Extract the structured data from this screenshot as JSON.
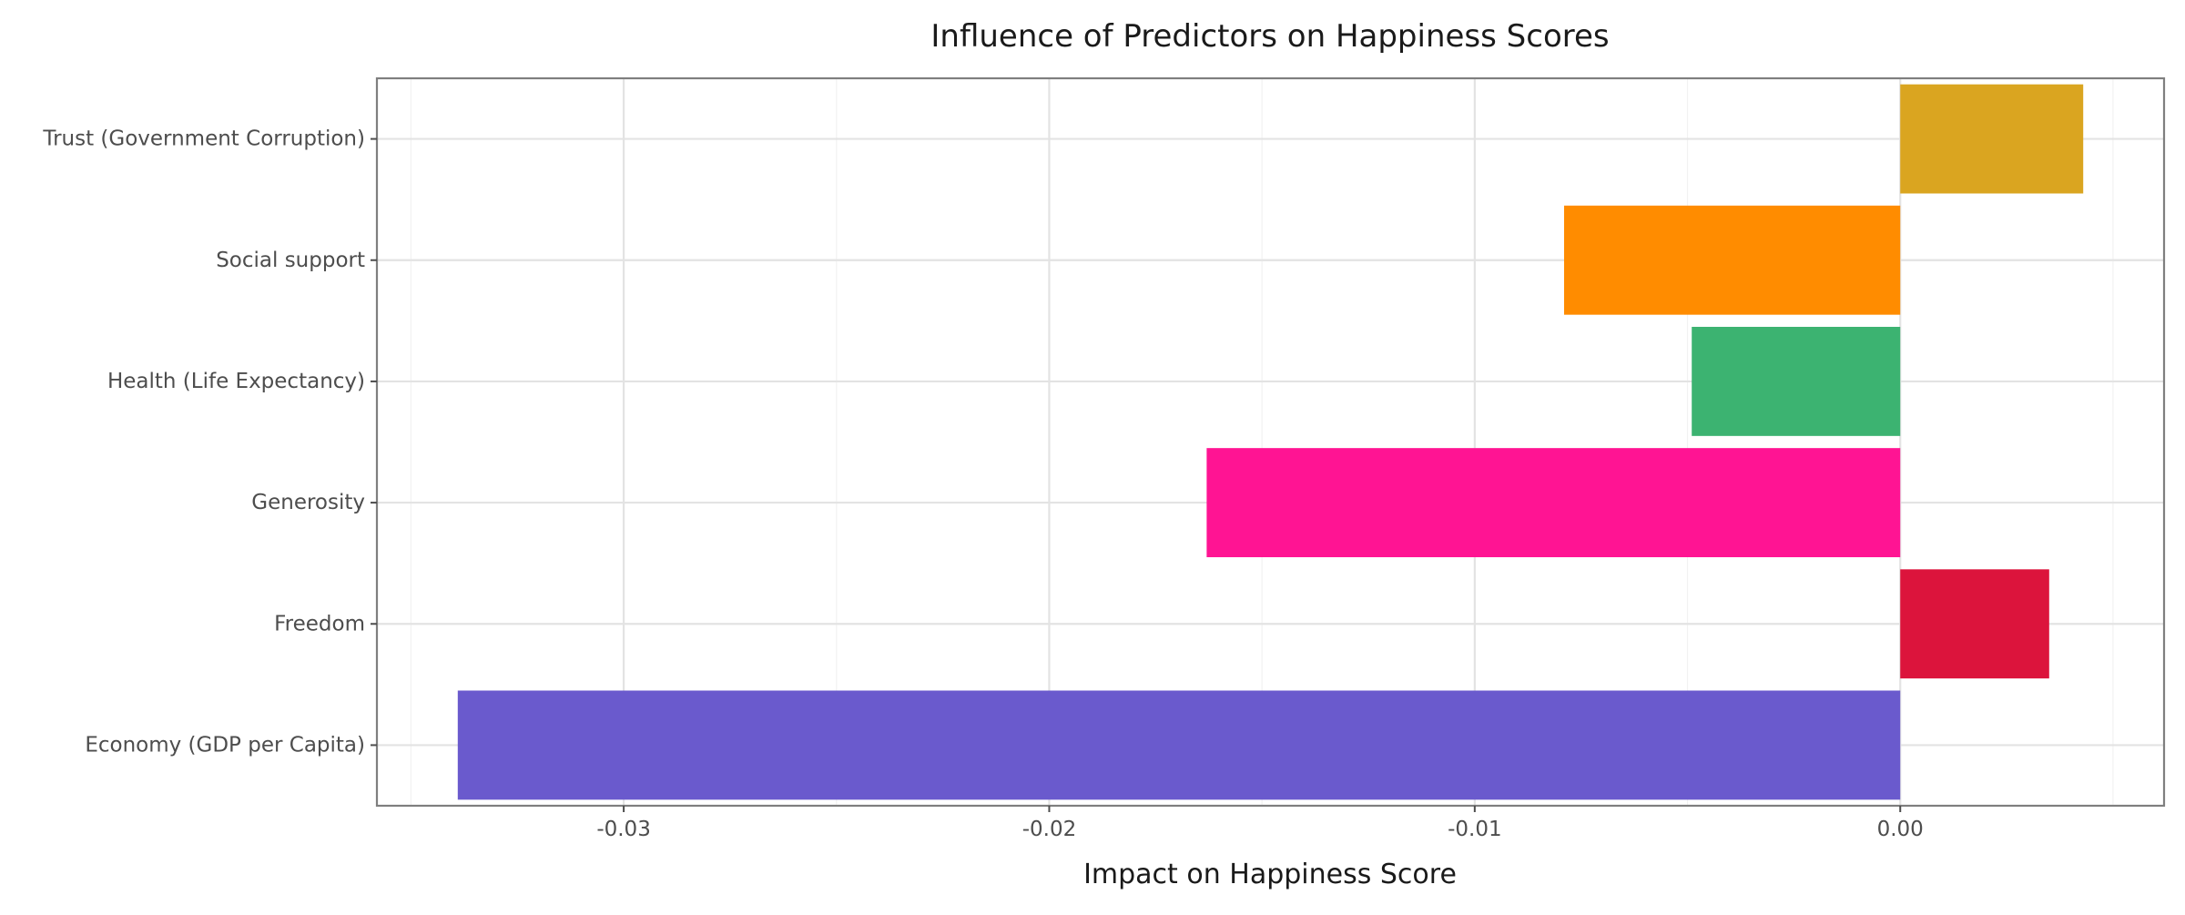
{
  "chart_data": {
    "type": "bar",
    "orientation": "horizontal",
    "title": "Influence of Predictors on Happiness Scores",
    "xlabel": "Impact on Happiness Score",
    "ylabel": "",
    "xlim": [
      -0.0358,
      0.0062
    ],
    "x_major_ticks": [
      -0.03,
      -0.02,
      -0.01,
      0.0
    ],
    "x_minor_ticks": [
      -0.035,
      -0.025,
      -0.015,
      -0.005,
      0.005
    ],
    "x_tick_labels": [
      "-0.03",
      "-0.02",
      "-0.01",
      "0.00"
    ],
    "grid": true,
    "legend": "none",
    "categories": [
      "Economy (GDP per Capita)",
      "Freedom",
      "Generosity",
      "Health (Life Expectancy)",
      "Social support",
      "Trust (Government Corruption)"
    ],
    "values": [
      -0.0339,
      0.0035,
      -0.0163,
      -0.0049,
      -0.0079,
      0.0043
    ],
    "colors": [
      "#6A5ACD",
      "#DC143C",
      "#FF1493",
      "#3CB371",
      "#FF8C00",
      "#DAA520"
    ]
  }
}
